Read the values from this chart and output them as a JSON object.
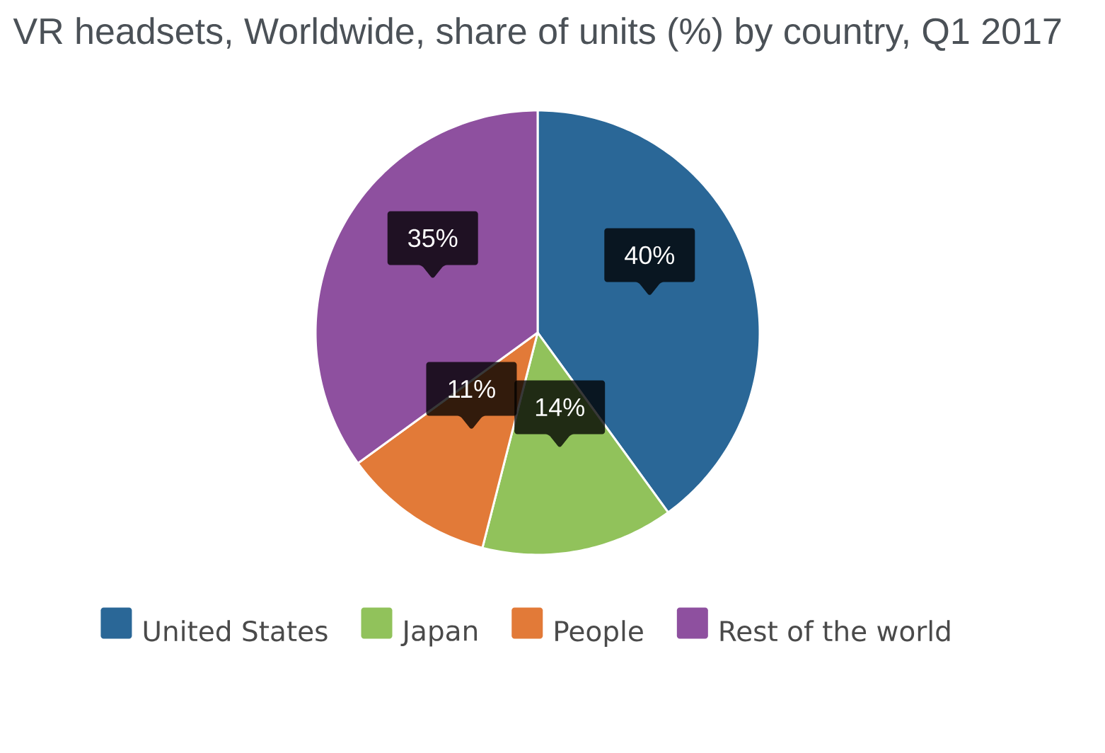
{
  "chart_data": {
    "type": "pie",
    "title": "VR headsets, Worldwide, share of units (%) by country, Q1 2017",
    "categories": [
      "United States",
      "Japan",
      "People",
      "Rest of the world"
    ],
    "values": [
      40,
      14,
      11,
      35
    ],
    "value_labels": [
      "40%",
      "14%",
      "11%",
      "35%"
    ],
    "colors": [
      "#2a6797",
      "#91c25b",
      "#e27a38",
      "#8e509f"
    ],
    "legend": "bottom"
  }
}
